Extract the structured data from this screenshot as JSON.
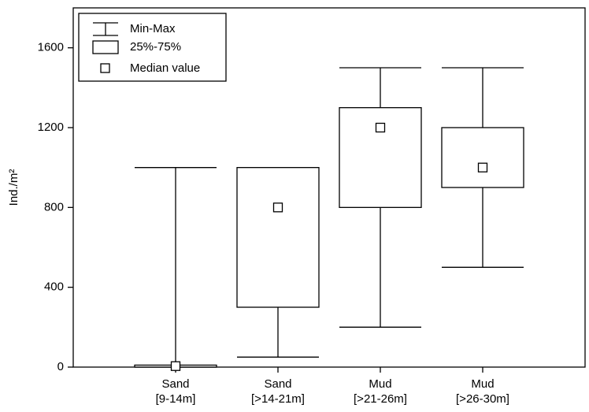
{
  "chart_data": {
    "type": "box",
    "y_label": "Ind./m²",
    "categories": [
      [
        "Sand",
        "[9-14m]"
      ],
      [
        "Sand",
        "[>14-21m]"
      ],
      [
        "Mud",
        "[>21-26m]"
      ],
      [
        "Mud",
        "[>26-30m]"
      ]
    ],
    "series": {
      "min": [
        0,
        50,
        200,
        500
      ],
      "q1": [
        0,
        300,
        800,
        900
      ],
      "median": [
        5,
        800,
        1200,
        1000
      ],
      "q3": [
        10,
        1000,
        1300,
        1200
      ],
      "max": [
        1000,
        1000,
        1500,
        1500
      ]
    },
    "legend": [
      "Min-Max",
      "25%-75%",
      "Median value"
    ],
    "ylim": [
      0,
      1800
    ],
    "yticks": [
      0,
      400,
      800,
      1200,
      1600
    ],
    "grid": false
  }
}
